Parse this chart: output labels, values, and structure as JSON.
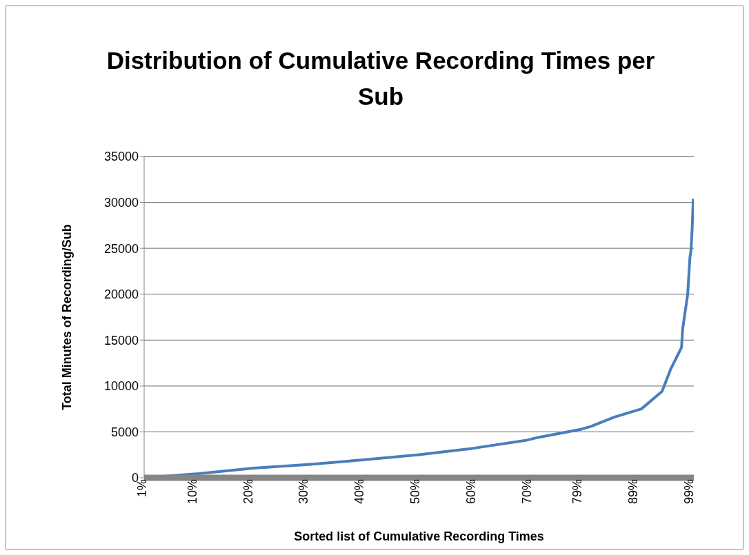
{
  "chart_data": {
    "type": "line",
    "title": "Distribution of Cumulative Recording Times per Sub",
    "xlabel": "Sorted list of Cumulative Recording Times",
    "ylabel": "Total Minutes of Recording/Sub",
    "x": [
      1,
      10.8,
      20.6,
      30.4,
      40.2,
      50,
      59.8,
      69.6,
      71.6,
      79.4,
      81.1,
      85.2,
      90.1,
      93.8,
      95.4,
      97.3,
      97.5,
      98.4,
      98.8,
      99.0,
      99.2,
      99.4
    ],
    "series": [
      {
        "color": "#4a7ebb",
        "values": [
          0,
          450,
          1050,
          1450,
          1950,
          2500,
          3200,
          4100,
          4400,
          5300,
          5600,
          6600,
          7500,
          9400,
          11900,
          14200,
          16200,
          20000,
          24000,
          24800,
          27100,
          30400
        ]
      }
    ],
    "xlim": [
      1,
      99.5
    ],
    "xticks": [
      {
        "value": 1,
        "label": "1%"
      },
      {
        "value": 10,
        "label": "10%"
      },
      {
        "value": 20,
        "label": "20%"
      },
      {
        "value": 30,
        "label": "30%"
      },
      {
        "value": 40,
        "label": "40%"
      },
      {
        "value": 50,
        "label": "50%"
      },
      {
        "value": 60,
        "label": "60%"
      },
      {
        "value": 70,
        "label": "70%"
      },
      {
        "value": 79,
        "label": "79%"
      },
      {
        "value": 89,
        "label": "89%"
      },
      {
        "value": 99,
        "label": "99%"
      }
    ],
    "ylim": [
      0,
      35000
    ],
    "yticks": [
      0,
      5000,
      10000,
      15000,
      20000,
      25000,
      30000,
      35000
    ],
    "grid": "y",
    "legend": false,
    "marker": "none",
    "line_style": "solid"
  }
}
